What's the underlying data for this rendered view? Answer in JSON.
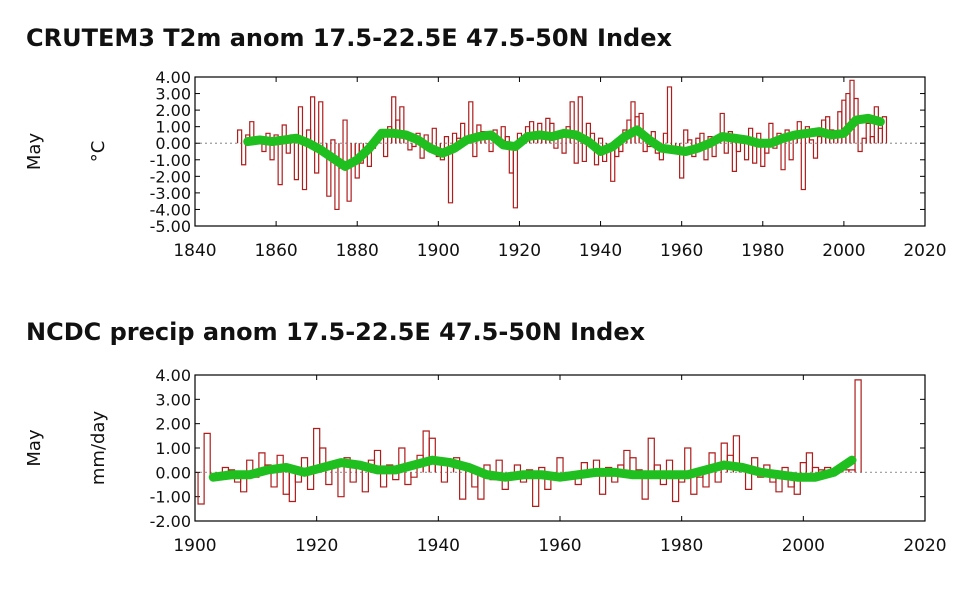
{
  "chart_data": [
    {
      "type": "bar",
      "title": "CRUTEM3 T2m anom 17.5-22.5E 47.5-50N Index",
      "ylabel_left": "May",
      "ylabel": "°C",
      "xlim": [
        1840,
        2020
      ],
      "ylim": [
        -5,
        4
      ],
      "xticks": [
        "1840",
        "1860",
        "1880",
        "1900",
        "1920",
        "1940",
        "1960",
        "1980",
        "2000",
        "2020"
      ],
      "yticks": [
        "4.00",
        "3.00",
        "2.00",
        "1.00",
        "0.00",
        "-1.00",
        "-2.00",
        "-3.00",
        "-4.00",
        "-5.00"
      ],
      "start_year": 1851,
      "values": [
        0.8,
        -1.3,
        0.5,
        1.3,
        0.3,
        0.4,
        -0.5,
        0.6,
        -1.0,
        0.5,
        -2.5,
        1.1,
        -0.6,
        0.5,
        -2.2,
        2.2,
        -2.8,
        0.8,
        2.8,
        -1.8,
        2.5,
        -0.6,
        -3.2,
        0.2,
        -4.0,
        -1.5,
        1.4,
        -3.5,
        -1.0,
        -2.1,
        -1.2,
        -0.6,
        -1.4,
        -0.3,
        0.5,
        0.7,
        -0.8,
        1.0,
        2.8,
        1.4,
        2.2,
        0.6,
        -0.4,
        -0.2,
        0.6,
        -0.9,
        0.5,
        -0.3,
        0.9,
        -0.8,
        -1.0,
        0.4,
        -3.6,
        0.6,
        0.3,
        1.2,
        0.4,
        2.5,
        -0.8,
        1.1,
        0.7,
        0.6,
        -0.5,
        0.8,
        0.2,
        1.0,
        0.4,
        -1.8,
        -3.9,
        0.6,
        0.3,
        1.0,
        1.3,
        0.4,
        1.2,
        0.4,
        1.5,
        1.2,
        -0.3,
        0.5,
        -0.6,
        1.0,
        2.5,
        -1.2,
        2.8,
        -1.1,
        1.2,
        0.6,
        -1.3,
        0.3,
        -1.1,
        -0.4,
        -2.3,
        -0.8,
        -0.5,
        0.8,
        1.4,
        2.5,
        1.6,
        1.8,
        -0.5,
        -0.2,
        0.7,
        -0.6,
        -1.0,
        0.6,
        3.4,
        -0.3,
        -0.5,
        -2.1,
        0.8,
        0.2,
        -0.8,
        0.3,
        0.6,
        -1.0,
        0.4,
        -0.8,
        0.4,
        1.8,
        -0.6,
        0.7,
        -1.7,
        -0.5,
        0.3,
        -1.0,
        0.9,
        -1.2,
        0.6,
        -1.4,
        -0.6,
        1.2,
        -0.3,
        0.6,
        -1.6,
        0.8,
        -1.0,
        0.5,
        1.3,
        -2.8,
        1.0,
        0.2,
        -0.9,
        0.4,
        1.4,
        1.6,
        0.8,
        0.4,
        1.9,
        2.6,
        3.0,
        3.8,
        2.7,
        -0.5,
        0.3,
        1.2,
        0.4,
        2.2,
        0.9,
        1.6
      ],
      "smooth_x": [
        1853,
        1856,
        1859,
        1862,
        1865,
        1868,
        1871,
        1874,
        1877,
        1880,
        1883,
        1886,
        1889,
        1892,
        1895,
        1898,
        1901,
        1904,
        1907,
        1910,
        1913,
        1916,
        1919,
        1922,
        1925,
        1928,
        1931,
        1934,
        1937,
        1940,
        1943,
        1946,
        1949,
        1952,
        1955,
        1958,
        1961,
        1964,
        1967,
        1970,
        1973,
        1976,
        1979,
        1982,
        1985,
        1988,
        1991,
        1994,
        1997,
        2000,
        2003,
        2006,
        2009
      ],
      "smooth_y": [
        0.1,
        0.2,
        0.1,
        0.2,
        0.3,
        0.0,
        -0.4,
        -0.9,
        -1.4,
        -1.0,
        -0.3,
        0.6,
        0.6,
        0.5,
        0.2,
        -0.3,
        -0.6,
        -0.3,
        0.2,
        0.4,
        0.5,
        -0.1,
        -0.2,
        0.4,
        0.5,
        0.4,
        0.6,
        0.5,
        0.1,
        -0.5,
        -0.2,
        0.4,
        0.8,
        0.2,
        -0.3,
        -0.4,
        -0.5,
        -0.3,
        0.0,
        0.4,
        0.3,
        0.2,
        0.0,
        0.0,
        0.3,
        0.5,
        0.6,
        0.7,
        0.5,
        0.6,
        1.4,
        1.5,
        1.3
      ]
    },
    {
      "type": "bar",
      "title": "NCDC precip anom 17.5-22.5E 47.5-50N Index",
      "ylabel_left": "May",
      "ylabel": "mm/day",
      "xlim": [
        1900,
        2020
      ],
      "ylim": [
        -2,
        4
      ],
      "xticks": [
        "1900",
        "1920",
        "1940",
        "1960",
        "1980",
        "2000",
        "2020"
      ],
      "yticks": [
        "4.00",
        "3.00",
        "2.00",
        "1.00",
        "0.00",
        "-1.00",
        "-2.00"
      ],
      "start_year": 1901,
      "values": [
        -1.3,
        1.6,
        -0.2,
        -0.3,
        0.2,
        0.1,
        -0.4,
        -0.8,
        0.5,
        -0.2,
        0.8,
        0.3,
        -0.6,
        0.7,
        -0.9,
        -1.2,
        -0.4,
        0.6,
        -0.7,
        1.8,
        1.0,
        -0.5,
        0.3,
        -1.0,
        0.6,
        -0.4,
        0.2,
        -0.8,
        0.5,
        0.9,
        -0.6,
        0.3,
        -0.3,
        1.0,
        -0.5,
        -0.2,
        0.7,
        1.7,
        1.4,
        0.4,
        -0.4,
        0.3,
        0.6,
        -1.1,
        0.2,
        -0.6,
        -1.1,
        0.3,
        -0.3,
        0.5,
        -0.7,
        -0.2,
        0.3,
        -0.4,
        0.1,
        -1.4,
        0.2,
        -0.7,
        -0.2,
        0.6,
        -0.3,
        0.0,
        -0.5,
        0.4,
        -0.1,
        0.5,
        -0.9,
        0.2,
        -0.4,
        0.3,
        0.9,
        0.6,
        0.1,
        -1.1,
        1.4,
        0.3,
        -0.5,
        0.5,
        -1.2,
        -0.4,
        1.0,
        -0.9,
        -0.2,
        -0.6,
        0.8,
        -0.4,
        1.2,
        0.7,
        1.5,
        0.3,
        -0.7,
        0.6,
        -0.2,
        0.3,
        -0.4,
        -0.8,
        0.2,
        -0.6,
        -0.9,
        0.4,
        0.8,
        0.2,
        0.1,
        0.2,
        0.1,
        0.1,
        0.1,
        0.1,
        3.8
      ],
      "smooth_x": [
        1903,
        1906,
        1909,
        1912,
        1915,
        1918,
        1921,
        1924,
        1927,
        1930,
        1933,
        1936,
        1939,
        1942,
        1945,
        1948,
        1951,
        1954,
        1957,
        1960,
        1963,
        1966,
        1969,
        1972,
        1975,
        1978,
        1981,
        1984,
        1987,
        1990,
        1993,
        1996,
        1999,
        2002,
        2005,
        2008
      ],
      "smooth_y": [
        -0.2,
        -0.1,
        -0.1,
        0.1,
        0.2,
        0.0,
        0.2,
        0.4,
        0.3,
        0.1,
        0.1,
        0.3,
        0.5,
        0.4,
        0.2,
        -0.1,
        -0.2,
        -0.1,
        -0.1,
        -0.2,
        -0.1,
        0.0,
        0.0,
        -0.1,
        -0.1,
        -0.1,
        -0.1,
        0.1,
        0.3,
        0.2,
        0.0,
        -0.1,
        -0.2,
        -0.2,
        0.0,
        0.5
      ]
    }
  ],
  "colors": {
    "bars": "#b01c1c",
    "smooth": "#1fbf1f",
    "zero_line": "#9a9a9a",
    "frame": "#000000"
  }
}
